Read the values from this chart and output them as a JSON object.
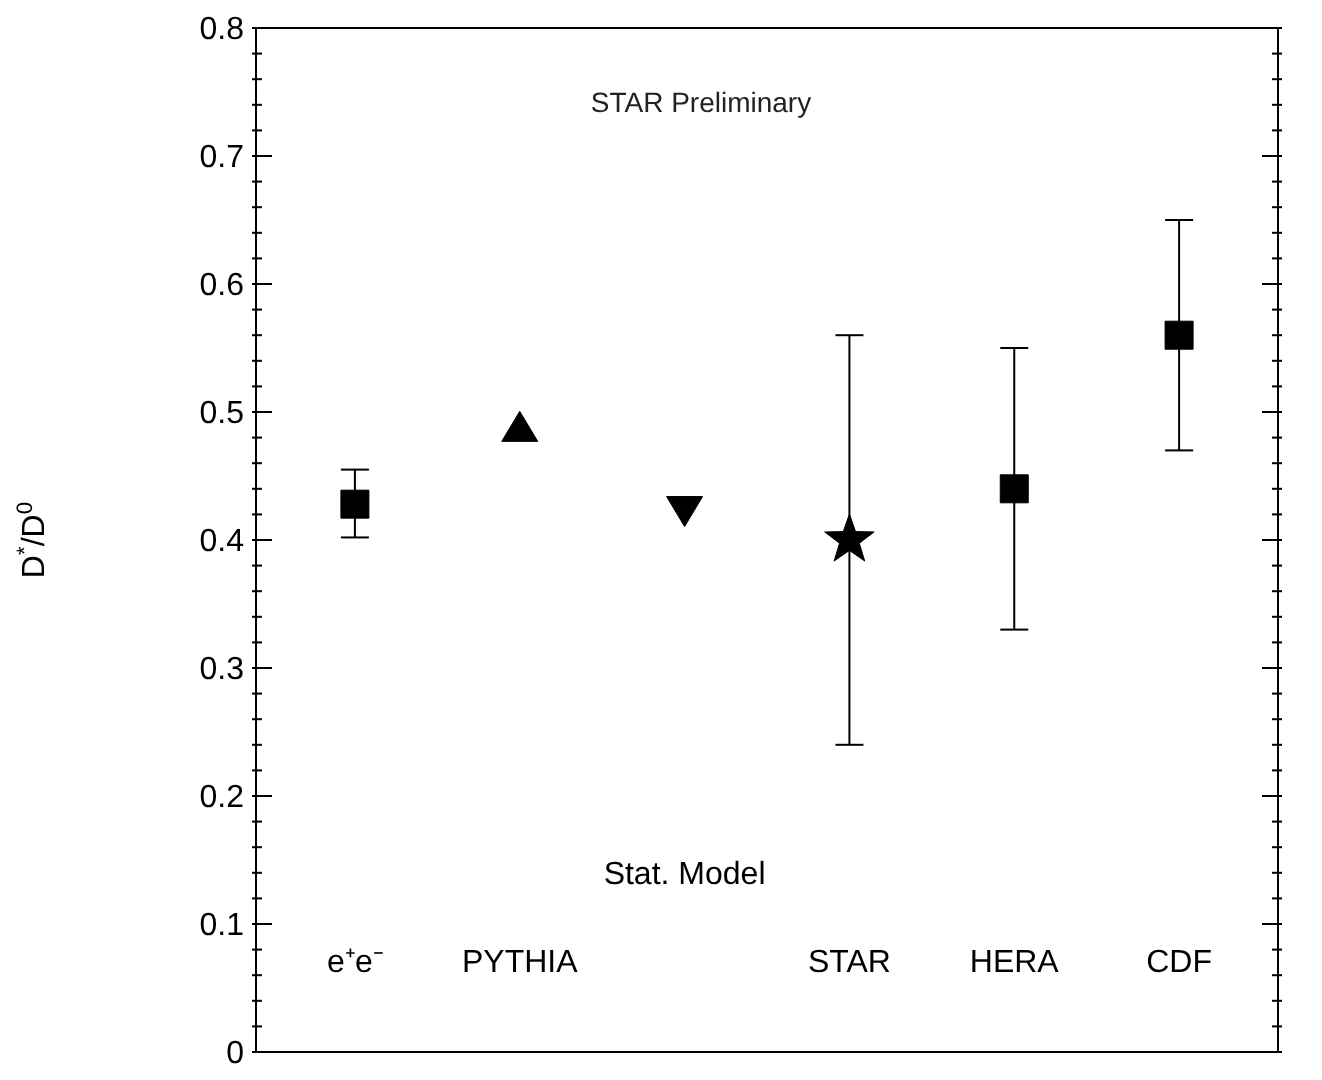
{
  "chart_data": {
    "type": "scatter",
    "ylabel": "D$^{*}$/D$^{0}$",
    "annotations": [
      "STAR Preliminary"
    ],
    "categories": [
      "e⁺e⁻",
      "PYTHIA",
      "Stat. Model",
      "STAR",
      "HERA",
      "CDF"
    ],
    "series": [
      {
        "color": "#000000",
        "marker": "square",
        "values": [
          0.428,
          null,
          null,
          null,
          0.44,
          0.56
        ],
        "errors": [
          [
            0.402,
            0.455
          ],
          null,
          null,
          null,
          [
            0.33,
            0.55
          ],
          [
            0.47,
            0.65
          ]
        ]
      },
      {
        "color": "#000000",
        "marker": "triangle",
        "values": [
          null,
          0.488,
          null,
          null,
          null,
          null
        ]
      },
      {
        "color": "#000000",
        "marker": "triangle-down",
        "values": [
          null,
          null,
          0.423,
          null,
          null,
          null
        ]
      },
      {
        "color": "#000000",
        "marker": "star",
        "values": [
          null,
          null,
          null,
          0.4,
          null,
          null
        ],
        "errors": [
          null,
          null,
          null,
          [
            0.24,
            0.56
          ],
          null,
          null
        ]
      }
    ],
    "ylim": [
      0,
      0.8
    ],
    "yticks": [
      0,
      {
        "value": 0.02,
        "label": null
      },
      {
        "value": 0.04,
        "label": null
      },
      {
        "value": 0.06,
        "label": null
      },
      {
        "value": 0.08,
        "label": null
      },
      0.1,
      {
        "value": 0.12,
        "label": null
      },
      {
        "value": 0.14,
        "label": null
      },
      {
        "value": 0.16,
        "label": null
      },
      {
        "value": 0.18,
        "label": null
      },
      0.2,
      {
        "value": 0.22,
        "label": null
      },
      {
        "value": 0.24,
        "label": null
      },
      {
        "value": 0.26,
        "label": null
      },
      {
        "value": 0.28,
        "label": null
      },
      0.3,
      {
        "value": 0.32,
        "label": null
      },
      {
        "value": 0.34,
        "label": null
      },
      {
        "value": 0.36,
        "label": null
      },
      {
        "value": 0.38,
        "label": null
      },
      0.4,
      {
        "value": 0.42,
        "label": null
      },
      {
        "value": 0.44,
        "label": null
      },
      {
        "value": 0.46,
        "label": null
      },
      {
        "value": 0.48,
        "label": null
      },
      0.5,
      {
        "value": 0.52,
        "label": null
      },
      {
        "value": 0.54,
        "label": null
      },
      {
        "value": 0.56,
        "label": null
      },
      {
        "value": 0.58,
        "label": null
      },
      0.6,
      {
        "value": 0.62,
        "label": null
      },
      {
        "value": 0.64,
        "label": null
      },
      {
        "value": 0.66,
        "label": null
      },
      {
        "value": 0.68,
        "label": null
      },
      0.7,
      {
        "value": 0.72,
        "label": null
      },
      {
        "value": 0.74,
        "label": null
      },
      {
        "value": 0.76,
        "label": null
      },
      {
        "value": 0.78,
        "label": null
      },
      0.8
    ],
    "grid": false,
    "legend": false
  }
}
